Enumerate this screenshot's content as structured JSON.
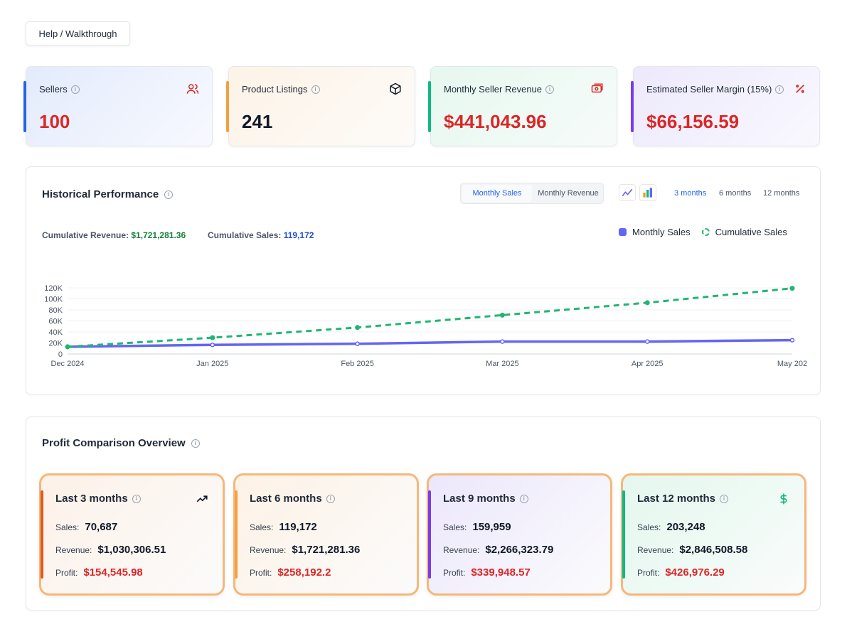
{
  "help_button": "Help / Walkthrough",
  "stats": [
    {
      "label": "Sellers",
      "value": "100",
      "icon": "users-icon",
      "accent": "#2563eb",
      "value_color": "#dc2626"
    },
    {
      "label": "Product Listings",
      "value": "241",
      "icon": "cube-icon",
      "accent": "#f59e42",
      "value_color": "#111827"
    },
    {
      "label": "Monthly Seller Revenue",
      "value": "$441,043.96",
      "icon": "cash-icon",
      "accent": "#10b981",
      "value_color": "#dc2626"
    },
    {
      "label": "Estimated Seller Margin (15%)",
      "value": "$66,156.59",
      "icon": "percent-icon",
      "accent": "#7c3aed",
      "value_color": "#dc2626"
    }
  ],
  "historical": {
    "title": "Historical Performance",
    "toggle": [
      "Monthly Sales",
      "Monthly Revenue"
    ],
    "active_toggle": "Monthly Sales",
    "ranges": [
      "3 months",
      "6 months",
      "12 months"
    ],
    "active_range": "3 months",
    "cumulative_revenue_label": "Cumulative Revenue:",
    "cumulative_revenue": "$1,721,281.36",
    "cumulative_sales_label": "Cumulative Sales:",
    "cumulative_sales": "119,172",
    "legend": [
      "Monthly Sales",
      "Cumulative Sales"
    ]
  },
  "chart_data": {
    "type": "line",
    "categories": [
      "Dec 2024",
      "Jan 2025",
      "Feb 2025",
      "Mar 2025",
      "Apr 2025",
      "May 202"
    ],
    "series": [
      {
        "name": "Monthly Sales",
        "color": "#6366f1",
        "values": [
          13000,
          16500,
          18500,
          22500,
          22500,
          25000
        ]
      },
      {
        "name": "Cumulative Sales",
        "color": "#22b573",
        "values": [
          13000,
          29500,
          48000,
          70500,
          93000,
          119172
        ]
      }
    ],
    "ylim": [
      0,
      120000
    ],
    "yticks": [
      "0",
      "20K",
      "40K",
      "60K",
      "80K",
      "100K",
      "120K"
    ],
    "grid": true,
    "legend_position": "top-right"
  },
  "profit": {
    "title": "Profit Comparison Overview",
    "sales_label": "Sales:",
    "revenue_label": "Revenue:",
    "profit_label": "Profit:",
    "periods": [
      {
        "title": "Last 3 months",
        "sales": "70,687",
        "revenue": "$1,030,306.51",
        "profit": "$154,545.98",
        "accent": "#e05a1a",
        "icon": "trending-up-icon"
      },
      {
        "title": "Last 6 months",
        "sales": "119,172",
        "revenue": "$1,721,281.36",
        "profit": "$258,192.2",
        "accent": "#f59e42",
        "icon": ""
      },
      {
        "title": "Last 9 months",
        "sales": "159,959",
        "revenue": "$2,266,323.79",
        "profit": "$339,948.57",
        "accent": "#7c3aed",
        "icon": ""
      },
      {
        "title": "Last 12 months",
        "sales": "203,248",
        "revenue": "$2,846,508.58",
        "profit": "$426,976.29",
        "accent": "#10b981",
        "icon": "dollar-icon"
      }
    ]
  }
}
